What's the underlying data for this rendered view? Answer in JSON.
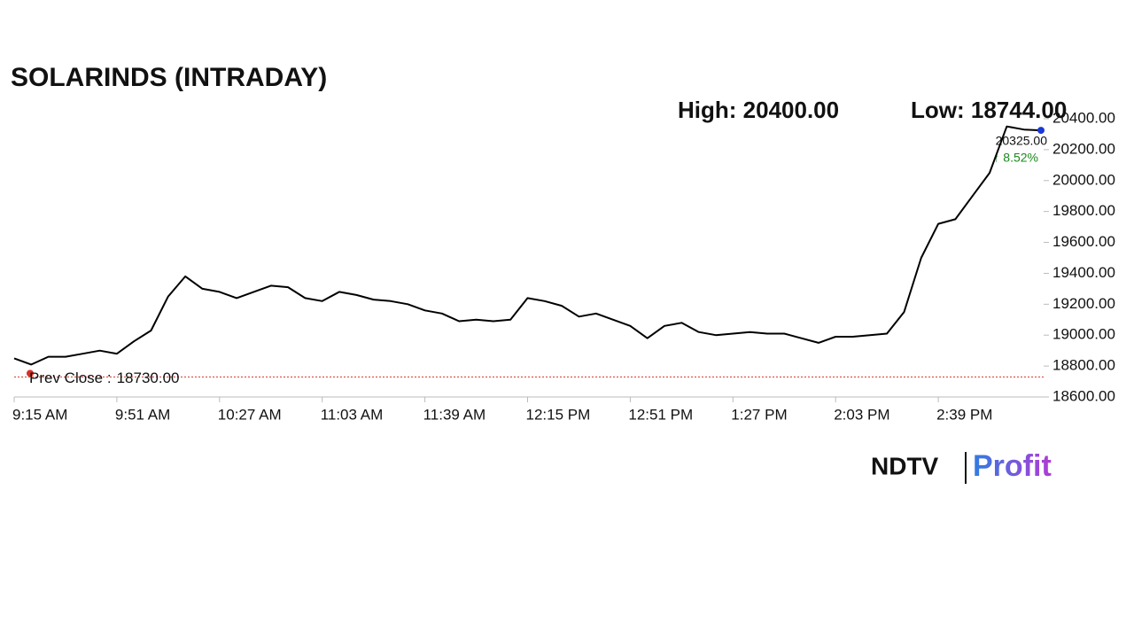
{
  "chart_data": {
    "type": "line",
    "title": "SOLARINDS (INTRADAY)",
    "high_label": "High: 20400.00",
    "low_label": "Low: 18744.00",
    "last_value_label": "20325.00",
    "change_label": "↑ 8.52%",
    "prev_close": {
      "label": "Prev Close :",
      "value": 18730,
      "value_label": "18730.00",
      "color": "#d93025"
    },
    "logo": [
      "NDTV",
      "Profit"
    ],
    "x": [
      "9:15 AM",
      "9:21 AM",
      "9:27 AM",
      "9:33 AM",
      "9:39 AM",
      "9:45 AM",
      "9:51 AM",
      "9:57 AM",
      "10:03 AM",
      "10:09 AM",
      "10:15 AM",
      "10:21 AM",
      "10:27 AM",
      "10:33 AM",
      "10:39 AM",
      "10:45 AM",
      "10:51 AM",
      "10:57 AM",
      "11:03 AM",
      "11:09 AM",
      "11:15 AM",
      "11:21 AM",
      "11:27 AM",
      "11:33 AM",
      "11:39 AM",
      "11:45 AM",
      "11:51 AM",
      "11:57 AM",
      "12:03 PM",
      "12:09 PM",
      "12:15 PM",
      "12:21 PM",
      "12:27 PM",
      "12:33 PM",
      "12:39 PM",
      "12:45 PM",
      "12:51 PM",
      "12:57 PM",
      "1:03 PM",
      "1:09 PM",
      "1:15 PM",
      "1:21 PM",
      "1:27 PM",
      "1:33 PM",
      "1:39 PM",
      "1:45 PM",
      "1:51 PM",
      "1:57 PM",
      "2:03 PM",
      "2:09 PM",
      "2:15 PM",
      "2:21 PM",
      "2:27 PM",
      "2:33 PM",
      "2:39 PM",
      "2:45 PM",
      "2:51 PM",
      "2:57 PM",
      "3:03 PM",
      "3:09 PM",
      "3:15 PM"
    ],
    "series": [
      {
        "name": "SOLARINDS",
        "color": "#000000",
        "values": [
          18850,
          18810,
          18860,
          18860,
          18880,
          18900,
          18880,
          18960,
          19030,
          19250,
          19380,
          19300,
          19280,
          19240,
          19280,
          19320,
          19310,
          19240,
          19220,
          19280,
          19260,
          19230,
          19220,
          19200,
          19160,
          19140,
          19090,
          19100,
          19090,
          19100,
          19240,
          19220,
          19190,
          19120,
          19140,
          19100,
          19060,
          18980,
          19060,
          19080,
          19020,
          19000,
          19010,
          19020,
          19010,
          19010,
          18980,
          18950,
          18990,
          18990,
          19000,
          19010,
          19150,
          19500,
          19720,
          19750,
          19900,
          20050,
          20350,
          20330,
          20325
        ]
      }
    ],
    "xlim": [
      "9:15 AM",
      "3:15 PM"
    ],
    "xticks": [
      "9:15 AM",
      "9:51 AM",
      "10:27 AM",
      "11:03 AM",
      "11:39 AM",
      "12:15 PM",
      "12:51 PM",
      "1:27 PM",
      "2:03 PM",
      "2:39 PM"
    ],
    "ylim": [
      18600,
      20400
    ],
    "yticks": [
      {
        "value": 18600,
        "label": "18600.00"
      },
      {
        "value": 18800,
        "label": "18800.00"
      },
      {
        "value": 19000,
        "label": "19000.00"
      },
      {
        "value": 19200,
        "label": "19200.00"
      },
      {
        "value": 19400,
        "label": "19400.00"
      },
      {
        "value": 19600,
        "label": "19600.00"
      },
      {
        "value": 19800,
        "label": "19800.00"
      },
      {
        "value": 20000,
        "label": "20000.00"
      },
      {
        "value": 20200,
        "label": "20200.00"
      },
      {
        "value": 20400,
        "label": "20400.00"
      }
    ]
  }
}
